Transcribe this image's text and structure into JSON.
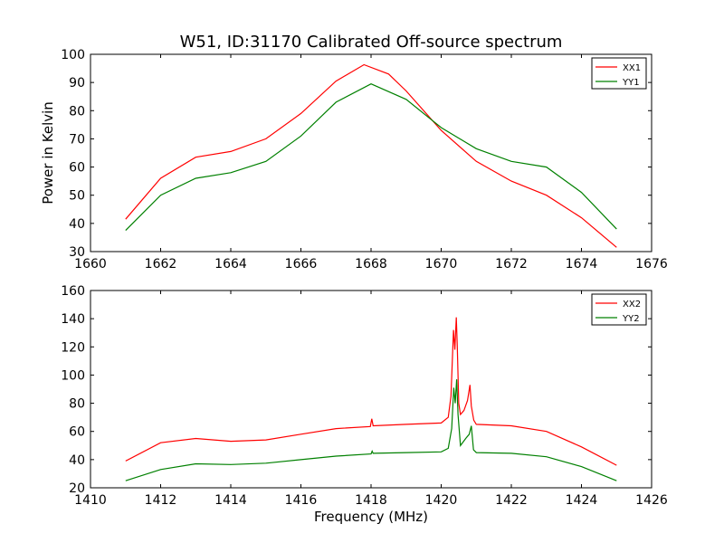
{
  "chart_data": [
    {
      "type": "line",
      "title": "W51, ID:31170 Calibrated Off-source spectrum",
      "xlabel": "",
      "ylabel": "Power in Kelvin",
      "xlim": [
        1660,
        1676
      ],
      "ylim": [
        30,
        100
      ],
      "xticks": [
        "1660",
        "1662",
        "1664",
        "1666",
        "1668",
        "1670",
        "1672",
        "1674",
        "1676"
      ],
      "yticks": [
        "30",
        "40",
        "50",
        "60",
        "70",
        "80",
        "90",
        "100"
      ],
      "legend": "top-right",
      "grid": false,
      "series": [
        {
          "name": "XX1",
          "color": "#ff0000",
          "x": [
            1661.0,
            1662.0,
            1663.0,
            1664.0,
            1665.0,
            1666.0,
            1667.0,
            1667.8,
            1668.5,
            1669.0,
            1670.0,
            1671.0,
            1672.0,
            1673.0,
            1674.0,
            1675.0
          ],
          "y": [
            41.5,
            56.0,
            63.5,
            65.5,
            70.0,
            79.0,
            90.5,
            96.3,
            93.0,
            87.0,
            73.0,
            62.0,
            55.0,
            50.0,
            42.0,
            31.5
          ]
        },
        {
          "name": "YY1",
          "color": "#008000",
          "x": [
            1661.0,
            1662.0,
            1663.0,
            1664.0,
            1665.0,
            1666.0,
            1667.0,
            1668.0,
            1669.0,
            1670.0,
            1671.0,
            1672.0,
            1673.0,
            1674.0,
            1675.0
          ],
          "y": [
            37.5,
            50.0,
            56.0,
            58.0,
            62.0,
            71.0,
            83.0,
            89.5,
            84.0,
            74.0,
            66.5,
            62.0,
            60.0,
            51.0,
            38.0
          ]
        }
      ]
    },
    {
      "type": "line",
      "title": "",
      "xlabel": "Frequency (MHz)",
      "ylabel": "",
      "xlim": [
        1410,
        1426
      ],
      "ylim": [
        20,
        160
      ],
      "xticks": [
        "1410",
        "1412",
        "1414",
        "1416",
        "1418",
        "1420",
        "1422",
        "1424",
        "1426"
      ],
      "yticks": [
        "20",
        "40",
        "60",
        "80",
        "100",
        "120",
        "140",
        "160"
      ],
      "legend": "top-right",
      "grid": false,
      "series": [
        {
          "name": "XX2",
          "color": "#ff0000",
          "x": [
            1411.0,
            1412.0,
            1413.0,
            1414.0,
            1415.0,
            1416.0,
            1417.0,
            1417.98,
            1418.02,
            1418.06,
            1419.0,
            1420.0,
            1420.2,
            1420.28,
            1420.35,
            1420.39,
            1420.43,
            1420.46,
            1420.5,
            1420.55,
            1420.65,
            1420.75,
            1420.82,
            1420.86,
            1420.93,
            1421.0,
            1422.0,
            1423.0,
            1424.0,
            1425.0
          ],
          "y": [
            39.0,
            52.0,
            55.0,
            53.0,
            54.0,
            58.0,
            62.0,
            63.5,
            69.0,
            64.0,
            65.0,
            66.0,
            70.0,
            85.0,
            132.0,
            118.0,
            141.0,
            120.0,
            80.0,
            72.0,
            75.0,
            82.0,
            93.0,
            78.0,
            68.0,
            65.0,
            64.0,
            60.0,
            49.0,
            36.0
          ]
        },
        {
          "name": "YY2",
          "color": "#008000",
          "x": [
            1411.0,
            1412.0,
            1413.0,
            1414.0,
            1415.0,
            1416.0,
            1417.0,
            1418.0,
            1418.03,
            1418.06,
            1419.0,
            1420.0,
            1420.2,
            1420.3,
            1420.36,
            1420.4,
            1420.44,
            1420.48,
            1420.55,
            1420.7,
            1420.8,
            1420.86,
            1420.92,
            1421.0,
            1422.0,
            1423.0,
            1424.0,
            1425.0
          ],
          "y": [
            25.0,
            33.0,
            37.0,
            36.5,
            37.5,
            40.0,
            42.5,
            44.0,
            46.0,
            44.5,
            45.0,
            45.5,
            48.0,
            62.0,
            91.0,
            80.0,
            97.0,
            72.0,
            50.0,
            55.0,
            58.0,
            64.0,
            47.0,
            45.0,
            44.5,
            42.0,
            35.0,
            25.0
          ]
        }
      ]
    }
  ]
}
